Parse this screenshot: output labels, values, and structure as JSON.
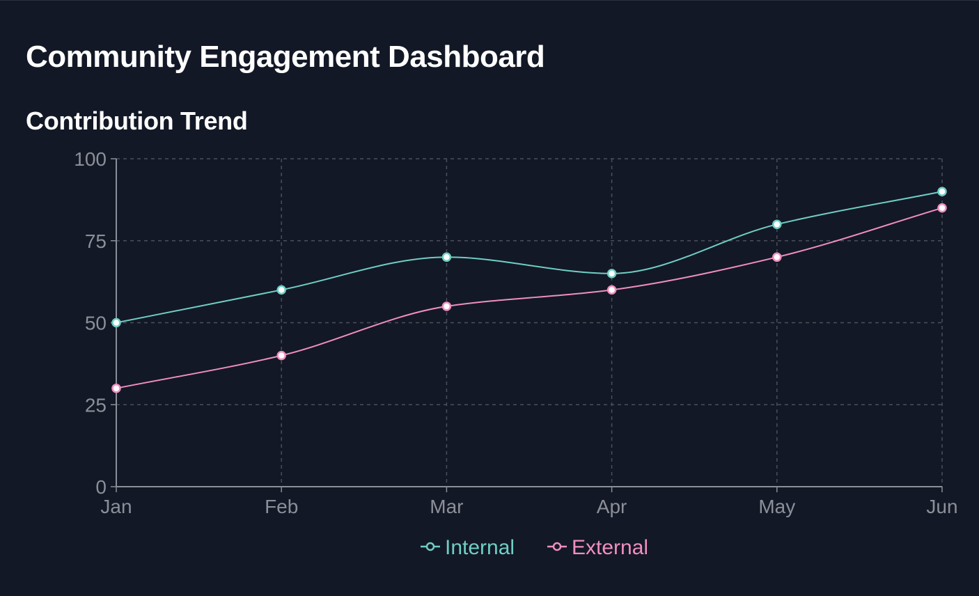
{
  "page": {
    "title": "Community Engagement Dashboard",
    "section_title": "Contribution Trend"
  },
  "chart_data": {
    "type": "line",
    "title": "Contribution Trend",
    "xlabel": "",
    "ylabel": "",
    "categories": [
      "Jan",
      "Feb",
      "Mar",
      "Apr",
      "May",
      "Jun"
    ],
    "ylim": [
      0,
      100
    ],
    "yticks": [
      0,
      25,
      50,
      75,
      100
    ],
    "grid": true,
    "legend_position": "bottom",
    "curve": "smooth",
    "series": [
      {
        "name": "Internal",
        "color": "#6fcfc4",
        "values": [
          50,
          60,
          70,
          65,
          80,
          90
        ]
      },
      {
        "name": "External",
        "color": "#f08fbf",
        "values": [
          30,
          40,
          55,
          60,
          70,
          85
        ]
      }
    ],
    "colors": {
      "background": "#131826",
      "grid": "#4b4f5a",
      "axis": "#8b8f99",
      "marker_fill": "#ffffff"
    }
  }
}
